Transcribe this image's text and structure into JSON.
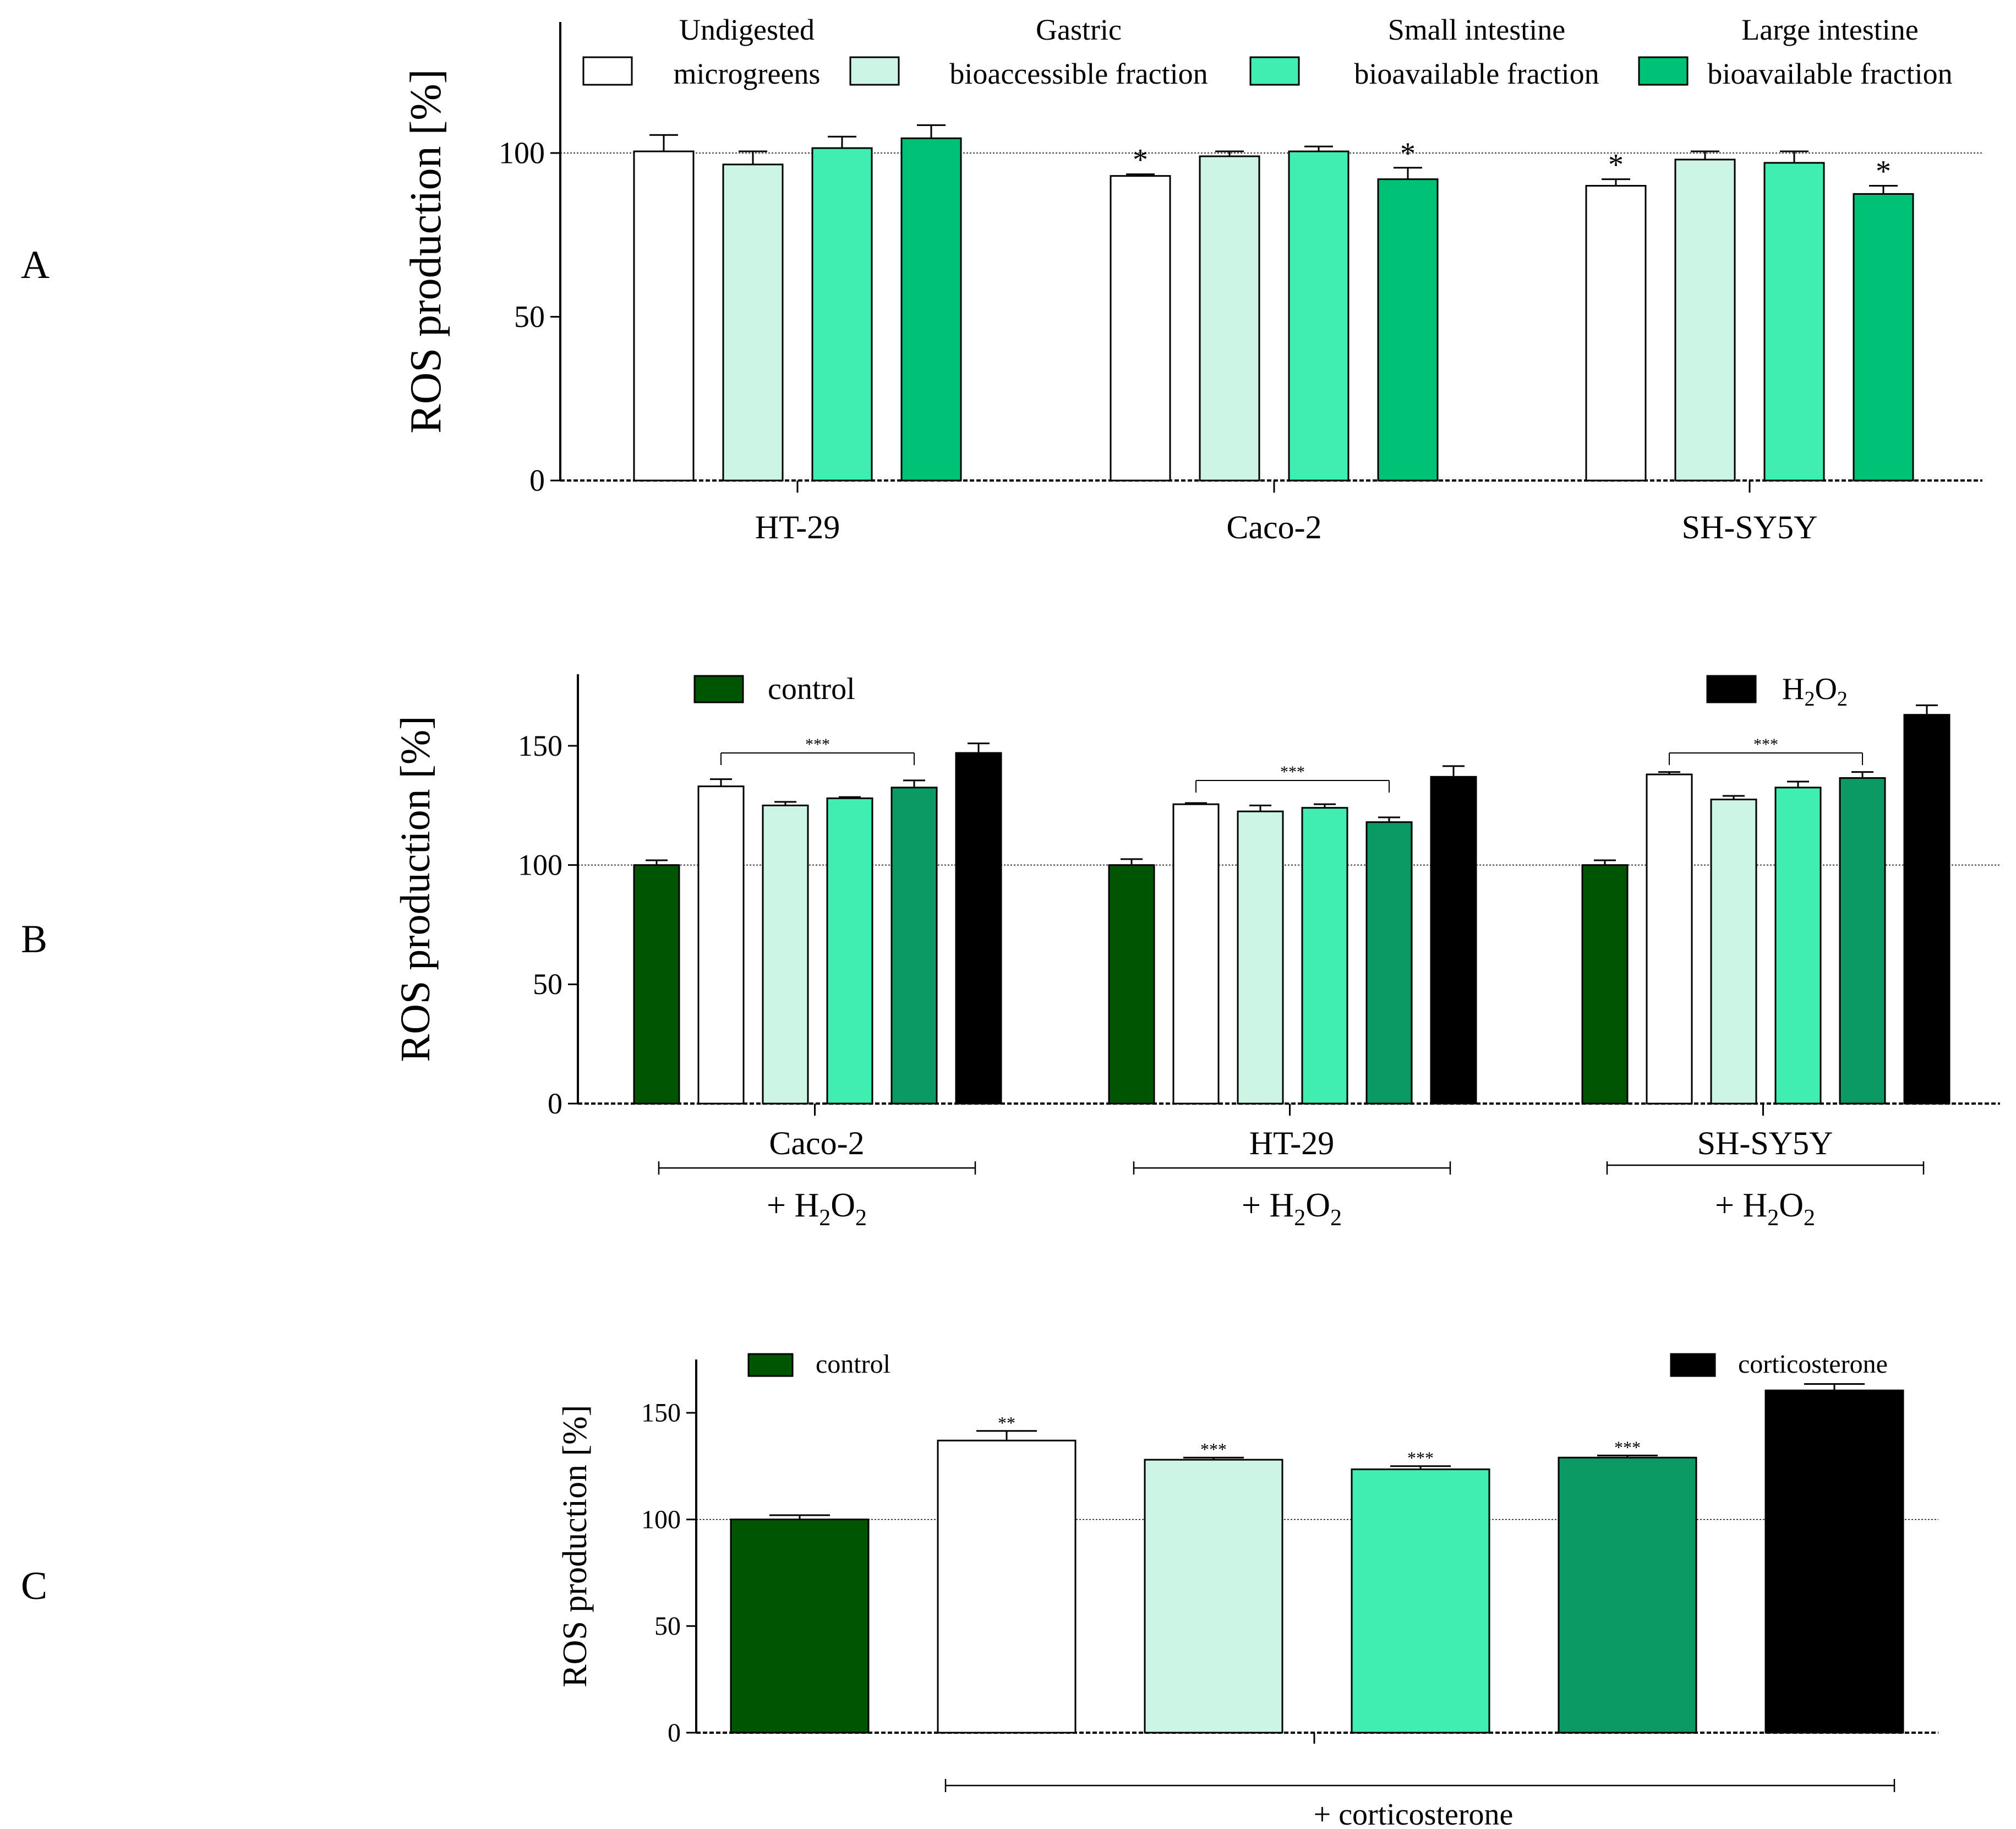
{
  "colors": {
    "undigested": "#ffffff",
    "gastric": "#cdf5e4",
    "small_intestine": "#40efb0",
    "large_intestine_A": "#00c274",
    "large_intestine_BC": "#0b9a63",
    "control": "#005600",
    "positive_control": "#000000"
  },
  "panels": {
    "A": "A",
    "B": "B",
    "C": "C"
  },
  "chart_data": [
    {
      "panel": "A",
      "type": "bar",
      "ylabel": "ROS production [%]",
      "ylim": [
        0,
        140
      ],
      "yticks": [
        0,
        50,
        100
      ],
      "reference_line": 100,
      "categories": [
        "HT-29",
        "Caco-2",
        "SH-SY5Y"
      ],
      "legend": [
        {
          "line1": "Undigested",
          "line2": "microgreens",
          "color": "#ffffff"
        },
        {
          "line1": "Gastric",
          "line2": "bioaccessible fraction",
          "color": "#cdf5e4"
        },
        {
          "line1": "Small intestine",
          "line2": "bioavailable fraction",
          "color": "#40efb0"
        },
        {
          "line1": "Large intestine",
          "line2": "bioavailable fraction",
          "color": "#00c274"
        }
      ],
      "series": [
        {
          "name": "Undigested microgreens",
          "color": "#ffffff",
          "values": [
            100.5,
            93,
            90
          ],
          "errors": [
            5,
            0.5,
            2
          ],
          "marks": [
            "",
            "*",
            "*"
          ]
        },
        {
          "name": "Gastric bioaccessible fraction",
          "color": "#cdf5e4",
          "values": [
            96.5,
            99,
            98
          ],
          "errors": [
            4,
            1.5,
            2.5
          ],
          "marks": [
            "",
            "",
            ""
          ]
        },
        {
          "name": "Small intestine bioavailable fraction",
          "color": "#40efb0",
          "values": [
            101.5,
            100.5,
            97
          ],
          "errors": [
            3.5,
            1.5,
            3.5
          ],
          "marks": [
            "",
            "",
            ""
          ]
        },
        {
          "name": "Large intestine bioavailable fraction",
          "color": "#00c274",
          "values": [
            104.5,
            92,
            87.5
          ],
          "errors": [
            4,
            3.5,
            2.5
          ],
          "marks": [
            "",
            "*",
            "*"
          ]
        }
      ]
    },
    {
      "panel": "B",
      "type": "bar",
      "ylabel": "ROS production [%]",
      "ylim": [
        0,
        180
      ],
      "yticks": [
        0,
        50,
        100,
        150
      ],
      "reference_line": 100,
      "categories": [
        "Caco-2",
        "HT-29",
        "SH-SY5Y"
      ],
      "group_sublabel": {
        "prefix": "+ H",
        "sub": "2",
        "mid": "O",
        "sub2": "2"
      },
      "legend": [
        {
          "label": "control",
          "color": "#005600"
        },
        {
          "label_main": "H",
          "label_sub": "2",
          "label_mid": "O",
          "label_sub2": "2",
          "color": "#000000"
        }
      ],
      "significance": "***",
      "series": [
        {
          "name": "control",
          "color": "#005600",
          "values": [
            100,
            100,
            100
          ],
          "errors": [
            2,
            2.5,
            2
          ]
        },
        {
          "name": "Undigested microgreens",
          "color": "#ffffff",
          "values": [
            133,
            125.5,
            138
          ],
          "errors": [
            3,
            0.5,
            1
          ]
        },
        {
          "name": "Gastric bioaccessible fraction",
          "color": "#cdf5e4",
          "values": [
            125,
            122.5,
            127.5
          ],
          "errors": [
            1.5,
            2.5,
            1.5
          ]
        },
        {
          "name": "Small intestine bioavailable fraction",
          "color": "#40efb0",
          "values": [
            128,
            124,
            132.5
          ],
          "errors": [
            0.5,
            1.5,
            2.5
          ]
        },
        {
          "name": "Large intestine bioavailable fraction",
          "color": "#0b9a63",
          "values": [
            132.5,
            118,
            136.5
          ],
          "errors": [
            3,
            2,
            2.5
          ]
        },
        {
          "name": "H2O2",
          "color": "#000000",
          "values": [
            147,
            137,
            163
          ],
          "errors": [
            4,
            4.5,
            4
          ]
        }
      ]
    },
    {
      "panel": "C",
      "type": "bar",
      "ylabel": "ROS production [%]",
      "ylim": [
        0,
        175
      ],
      "yticks": [
        0,
        50,
        100,
        150
      ],
      "reference_line": 100,
      "group_label": "+ corticosterone",
      "legend": [
        {
          "label": "control",
          "color": "#005600"
        },
        {
          "label": "corticosterone",
          "color": "#000000"
        }
      ],
      "series": [
        {
          "name": "control",
          "color": "#005600",
          "value": 100,
          "error": 2,
          "mark": ""
        },
        {
          "name": "Undigested microgreens",
          "color": "#ffffff",
          "value": 137,
          "error": 4.5,
          "mark": "**"
        },
        {
          "name": "Gastric bioaccessible fraction",
          "color": "#cdf5e4",
          "value": 128,
          "error": 1,
          "mark": "***"
        },
        {
          "name": "Small intestine bioavailable fraction",
          "color": "#40efb0",
          "value": 123.5,
          "error": 1.5,
          "mark": "***"
        },
        {
          "name": "Large intestine bioavailable fraction",
          "color": "#0b9a63",
          "value": 129,
          "error": 1,
          "mark": "***"
        },
        {
          "name": "corticosterone",
          "color": "#000000",
          "value": 160.5,
          "error": 3,
          "mark": ""
        }
      ]
    }
  ]
}
